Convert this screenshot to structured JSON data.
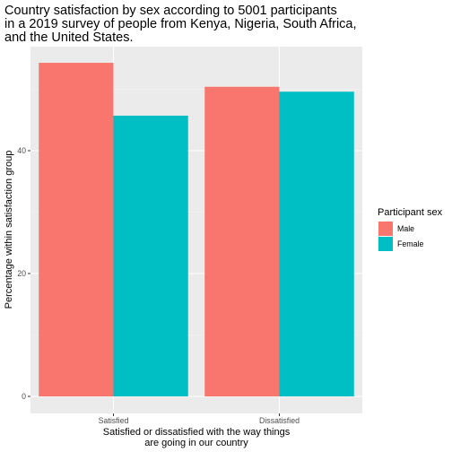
{
  "chart_data": {
    "type": "bar",
    "title_lines": [
      "Country satisfaction by sex according to 5001 participants",
      "in a 2019 survey of people from Kenya, Nigeria, South Africa,",
      "and the United States."
    ],
    "xlabel_lines": [
      "Satisfied or dissatisfied with the way things",
      "are going in our country"
    ],
    "ylabel": "Percentage within satisfaction group",
    "categories": [
      "Satisfied",
      "Dissatisfied"
    ],
    "series": [
      {
        "name": "Male",
        "values": [
          54.3,
          50.4
        ],
        "color": "#F8766D"
      },
      {
        "name": "Female",
        "values": [
          45.7,
          49.6
        ],
        "color": "#00BFC4"
      }
    ],
    "ylim": [
      0,
      57
    ],
    "yticks": [
      0,
      20,
      40
    ],
    "legend": {
      "title": "Participant sex",
      "placement": "right"
    },
    "grid": true,
    "panel_background": "#EBEBEB"
  }
}
